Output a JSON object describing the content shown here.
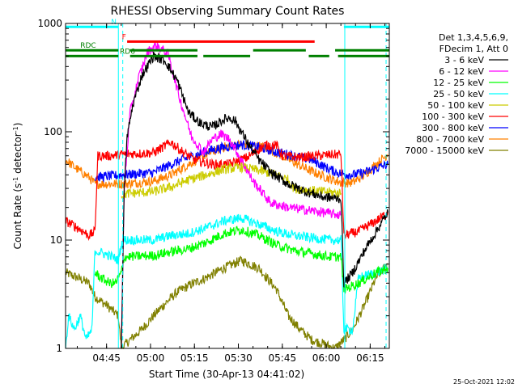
{
  "chart_data": {
    "type": "line",
    "title": "RHESSI Observing Summary Count Rates",
    "xlabel": "Start Time (30-Apr-13 04:41:02)",
    "ylabel_main": "Count Rate (s",
    "ylabel_sup1": "-1",
    "ylabel_mid": " detector",
    "ylabel_sup2": "-1",
    "ylabel_end": ")",
    "yscale": "log",
    "ylim": [
      1,
      1000
    ],
    "xlim_minutes": [
      -10.03,
      100.5
    ],
    "start_time": "04:41:02",
    "x_ticks": [
      {
        "label": "04:45",
        "min": 3.97
      },
      {
        "label": "05:00",
        "min": 18.97
      },
      {
        "label": "05:15",
        "min": 33.97
      },
      {
        "label": "05:30",
        "min": 48.97
      },
      {
        "label": "05:45",
        "min": 63.97
      },
      {
        "label": "06:00",
        "min": 78.97
      },
      {
        "label": "06:15",
        "min": 93.97
      }
    ],
    "y_ticks": [
      {
        "label": "1",
        "value": 1
      },
      {
        "label": "10",
        "value": 10
      },
      {
        "label": "100",
        "value": 100
      },
      {
        "label": "1000",
        "value": 1000
      }
    ],
    "legend_header": [
      "Det 1,3,4,5,6,9,",
      "FDecim 1, Att 0"
    ],
    "legend_position": "right",
    "series": [
      {
        "name": "3 - 6 keV",
        "color": "#000000",
        "points": [
          [
            9,
            1
          ],
          [
            10,
            30
          ],
          [
            11,
            90
          ],
          [
            13,
            180
          ],
          [
            16,
            330
          ],
          [
            20,
            500
          ],
          [
            24,
            450
          ],
          [
            28,
            300
          ],
          [
            32,
            150
          ],
          [
            36,
            120
          ],
          [
            40,
            110
          ],
          [
            44,
            130
          ],
          [
            46,
            135
          ],
          [
            48,
            125
          ],
          [
            52,
            80
          ],
          [
            56,
            55
          ],
          [
            60,
            42
          ],
          [
            66,
            33
          ],
          [
            72,
            28
          ],
          [
            78,
            25
          ],
          [
            84,
            24
          ],
          [
            85,
            4
          ],
          [
            88,
            5
          ],
          [
            92,
            8
          ],
          [
            96,
            12
          ],
          [
            100,
            18
          ]
        ]
      },
      {
        "name": "6 - 12 keV",
        "color": "#ff00ff",
        "points": [
          [
            9,
            1
          ],
          [
            10,
            30
          ],
          [
            12,
            150
          ],
          [
            15,
            320
          ],
          [
            18,
            550
          ],
          [
            21,
            630
          ],
          [
            25,
            520
          ],
          [
            29,
            200
          ],
          [
            33,
            90
          ],
          [
            37,
            65
          ],
          [
            40,
            85
          ],
          [
            43,
            95
          ],
          [
            46,
            85
          ],
          [
            50,
            55
          ],
          [
            54,
            35
          ],
          [
            60,
            22
          ],
          [
            66,
            20
          ],
          [
            72,
            19
          ],
          [
            78,
            18
          ],
          [
            84,
            17
          ]
        ]
      },
      {
        "name": "12 - 25 keV",
        "color": "#00ff00",
        "points": [
          [
            0,
            5
          ],
          [
            2,
            4.5
          ],
          [
            5,
            4
          ],
          [
            7,
            4
          ],
          [
            9,
            5
          ],
          [
            10,
            7
          ],
          [
            20,
            7.2
          ],
          [
            26,
            7.8
          ],
          [
            32,
            8.3
          ],
          [
            38,
            9.5
          ],
          [
            44,
            11.5
          ],
          [
            50,
            12.5
          ],
          [
            56,
            11
          ],
          [
            62,
            9
          ],
          [
            68,
            8
          ],
          [
            74,
            7.5
          ],
          [
            80,
            7
          ],
          [
            84,
            7
          ],
          [
            85,
            3.5
          ],
          [
            90,
            4
          ],
          [
            96,
            5
          ],
          [
            100,
            5.5
          ]
        ]
      },
      {
        "name": "25 - 50 keV",
        "color": "#00ffff",
        "points": [
          [
            -10,
            1
          ],
          [
            -9,
            2
          ],
          [
            -7,
            1.5
          ],
          [
            -5,
            2
          ],
          [
            -3,
            1.2
          ],
          [
            -1,
            1.5
          ],
          [
            0,
            8
          ],
          [
            3,
            7.5
          ],
          [
            6,
            7
          ],
          [
            8,
            6.5
          ],
          [
            9,
            9
          ],
          [
            10,
            10
          ],
          [
            20,
            10
          ],
          [
            26,
            11
          ],
          [
            32,
            11.5
          ],
          [
            38,
            13
          ],
          [
            44,
            15
          ],
          [
            50,
            16
          ],
          [
            56,
            14
          ],
          [
            62,
            12
          ],
          [
            68,
            11
          ],
          [
            74,
            10.5
          ],
          [
            80,
            10
          ],
          [
            84,
            10
          ],
          [
            85,
            1.5
          ],
          [
            88,
            1.5
          ],
          [
            90,
            4.5
          ],
          [
            96,
            5
          ],
          [
            100,
            5.5
          ]
        ]
      },
      {
        "name": "50 - 100 keV",
        "color": "#cccc00",
        "points": [
          [
            9,
            26
          ],
          [
            12,
            27
          ],
          [
            20,
            28
          ],
          [
            26,
            31
          ],
          [
            32,
            36
          ],
          [
            38,
            40
          ],
          [
            44,
            45
          ],
          [
            50,
            47
          ],
          [
            56,
            44
          ],
          [
            62,
            40
          ],
          [
            66,
            36
          ],
          [
            68,
            30
          ],
          [
            72,
            29
          ],
          [
            78,
            28
          ],
          [
            84,
            27
          ]
        ]
      },
      {
        "name": "100 - 300 keV",
        "color": "#ff0000",
        "points": [
          [
            -10,
            15
          ],
          [
            -8,
            14
          ],
          [
            -6,
            13
          ],
          [
            -4,
            12
          ],
          [
            -2,
            11
          ],
          [
            0,
            12
          ],
          [
            1,
            60
          ],
          [
            5,
            60
          ],
          [
            10,
            62
          ],
          [
            20,
            64
          ],
          [
            26,
            80
          ],
          [
            30,
            65
          ],
          [
            34,
            55
          ],
          [
            40,
            50
          ],
          [
            46,
            50
          ],
          [
            52,
            58
          ],
          [
            58,
            75
          ],
          [
            62,
            75
          ],
          [
            64,
            60
          ],
          [
            70,
            58
          ],
          [
            76,
            60
          ],
          [
            84,
            62
          ],
          [
            85,
            11
          ],
          [
            90,
            12
          ],
          [
            96,
            15
          ],
          [
            100,
            18
          ]
        ]
      },
      {
        "name": "300 - 800 keV",
        "color": "#0000ff",
        "points": [
          [
            0,
            38
          ],
          [
            10,
            40
          ],
          [
            20,
            42
          ],
          [
            26,
            50
          ],
          [
            32,
            58
          ],
          [
            38,
            66
          ],
          [
            44,
            72
          ],
          [
            50,
            76
          ],
          [
            56,
            72
          ],
          [
            62,
            65
          ],
          [
            68,
            60
          ],
          [
            74,
            55
          ],
          [
            80,
            45
          ],
          [
            84,
            41
          ],
          [
            88,
            40
          ],
          [
            92,
            42
          ],
          [
            96,
            46
          ],
          [
            100,
            50
          ]
        ]
      },
      {
        "name": "800 - 7000 keV",
        "color": "#ff8000",
        "points": [
          [
            -10,
            55
          ],
          [
            -6,
            45
          ],
          [
            -2,
            38
          ],
          [
            0,
            33
          ],
          [
            10,
            33
          ],
          [
            20,
            35
          ],
          [
            26,
            40
          ],
          [
            32,
            50
          ],
          [
            38,
            62
          ],
          [
            44,
            72
          ],
          [
            50,
            77
          ],
          [
            56,
            74
          ],
          [
            62,
            64
          ],
          [
            68,
            52
          ],
          [
            74,
            43
          ],
          [
            80,
            37
          ],
          [
            84,
            34
          ],
          [
            88,
            34
          ],
          [
            92,
            40
          ],
          [
            96,
            50
          ],
          [
            100,
            62
          ]
        ]
      },
      {
        "name": "7000 - 15000 keV",
        "color": "#808000",
        "points": [
          [
            -10,
            5
          ],
          [
            -6,
            4.5
          ],
          [
            -2,
            4
          ],
          [
            0,
            3
          ],
          [
            4,
            2.5
          ],
          [
            8,
            2
          ],
          [
            9,
            1
          ],
          [
            12,
            1.2
          ],
          [
            16,
            1.5
          ],
          [
            20,
            2
          ],
          [
            24,
            2.6
          ],
          [
            28,
            3.3
          ],
          [
            32,
            3.8
          ],
          [
            38,
            4.5
          ],
          [
            44,
            5.5
          ],
          [
            50,
            6.5
          ],
          [
            56,
            5.5
          ],
          [
            62,
            3.5
          ],
          [
            66,
            2
          ],
          [
            70,
            1.5
          ],
          [
            74,
            1.2
          ],
          [
            78,
            1.1
          ],
          [
            82,
            1
          ],
          [
            85,
            1.2
          ],
          [
            88,
            1.5
          ],
          [
            92,
            2.5
          ],
          [
            96,
            4.5
          ],
          [
            100,
            6
          ]
        ]
      }
    ],
    "flags": [
      {
        "label": "N",
        "color": "#00ffff",
        "label_min": 5.5,
        "y": 930,
        "segments": [
          [
            -10,
            8
          ],
          [
            85,
            100.5
          ]
        ]
      },
      {
        "label": "F",
        "color": "#ff0000",
        "label_min": 9.2,
        "y": 680,
        "segments": [
          [
            11,
            75
          ]
        ]
      },
      {
        "label": "RDC",
        "color": "#008000",
        "label_min": -5,
        "y": 565,
        "segments": [
          [
            -10,
            8
          ],
          [
            12,
            35
          ],
          [
            54,
            72
          ],
          [
            82,
            100.5
          ]
        ]
      },
      {
        "label": "RD6",
        "color": "#008000",
        "label_min": 8.5,
        "y": 500,
        "segments": [
          [
            -10,
            8
          ],
          [
            12,
            35
          ],
          [
            37,
            53
          ],
          [
            73,
            80
          ],
          [
            83,
            100.5
          ]
        ]
      }
    ],
    "cyan_lines": {
      "color": "#00ffff",
      "solid_min": [
        8.0,
        85.3
      ],
      "dashed_min": [
        9.5,
        99.4
      ]
    },
    "date_stamp": "25-Oct-2021 12:02"
  }
}
